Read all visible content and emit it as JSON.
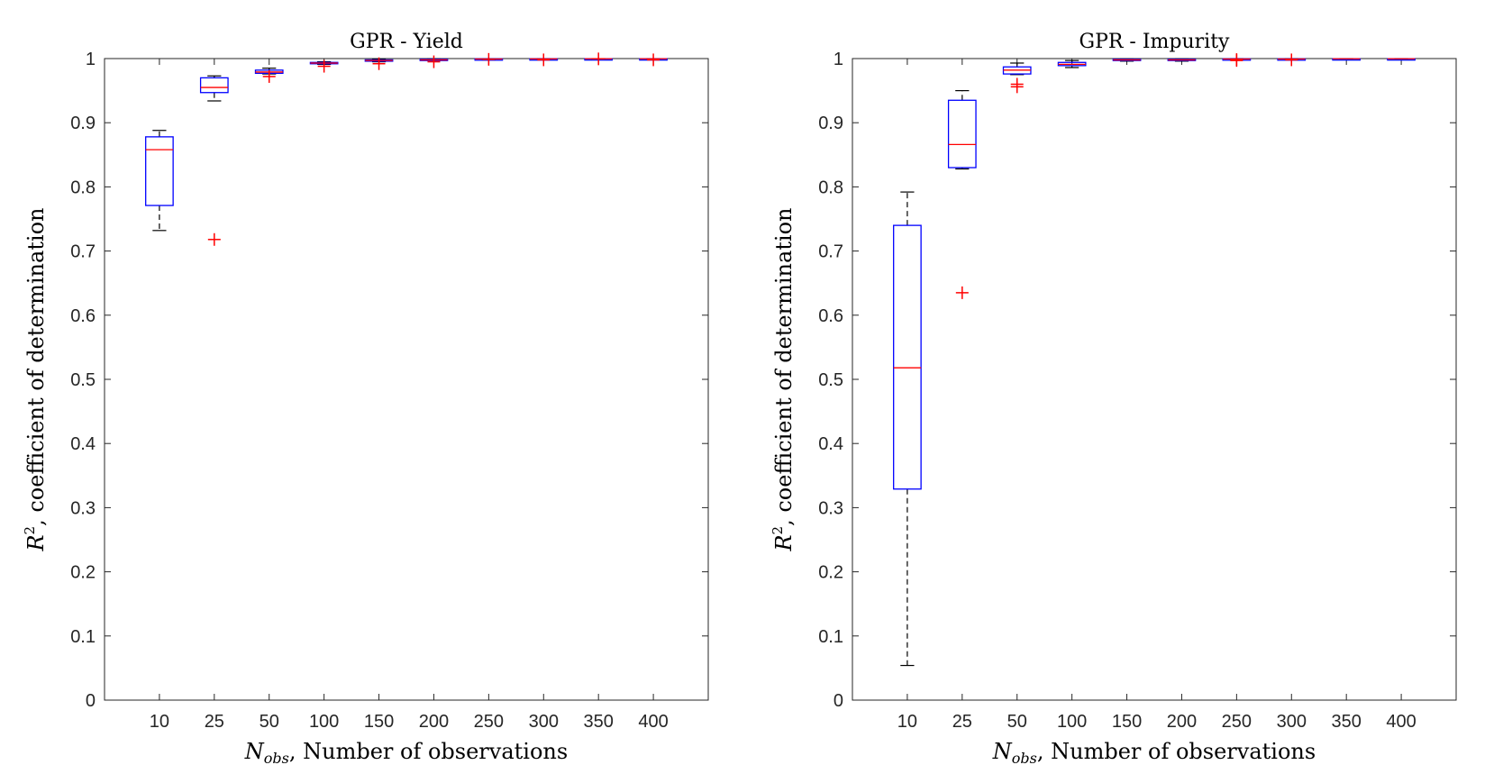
{
  "chart_data": [
    {
      "type": "box",
      "title": "GPR - Yield",
      "xlabel_symbol": "N",
      "xlabel_sub": "obs",
      "xlabel_text": ", Number of observations",
      "ylabel_symbol": "R",
      "ylabel_sup": "2",
      "ylabel_text": ", coefficient of determination",
      "categories": [
        "10",
        "25",
        "50",
        "100",
        "150",
        "200",
        "250",
        "300",
        "350",
        "400"
      ],
      "ylim": [
        0,
        1
      ],
      "yticks": [
        "0",
        "0.1",
        "0.2",
        "0.3",
        "0.4",
        "0.5",
        "0.6",
        "0.7",
        "0.8",
        "0.9",
        "1"
      ],
      "colors": {
        "box": "#0000ff",
        "median": "#ff0000",
        "whisker": "#000000",
        "outlier": "#ff0000"
      },
      "boxes": [
        {
          "wlo": 0.732,
          "q1": 0.771,
          "median": 0.858,
          "q3": 0.878,
          "whi": 0.888,
          "outliers": []
        },
        {
          "wlo": 0.934,
          "q1": 0.947,
          "median": 0.955,
          "q3": 0.97,
          "whi": 0.973,
          "outliers": [
            0.718
          ]
        },
        {
          "wlo": 0.976,
          "q1": 0.977,
          "median": 0.979,
          "q3": 0.982,
          "whi": 0.985,
          "outliers": [
            0.972
          ]
        },
        {
          "wlo": 0.991,
          "q1": 0.992,
          "median": 0.993,
          "q3": 0.994,
          "whi": 0.995,
          "outliers": [
            0.988
          ]
        },
        {
          "wlo": 0.995,
          "q1": 0.996,
          "median": 0.997,
          "q3": 0.998,
          "whi": 0.999,
          "outliers": [
            0.992
          ]
        },
        {
          "wlo": 0.997,
          "q1": 0.998,
          "median": 0.998,
          "q3": 0.999,
          "whi": 0.9995,
          "outliers": [
            0.995
          ]
        },
        {
          "wlo": 0.9985,
          "q1": 0.999,
          "median": 0.9993,
          "q3": 0.9996,
          "whi": 0.9998,
          "outliers": [
            0.9988
          ]
        },
        {
          "wlo": 0.9988,
          "q1": 0.9992,
          "median": 0.9995,
          "q3": 0.9997,
          "whi": 0.9999,
          "outliers": [
            0.998
          ]
        },
        {
          "wlo": 0.9992,
          "q1": 0.9994,
          "median": 0.9996,
          "q3": 0.9998,
          "whi": 0.9999,
          "outliers": [
            0.9995
          ]
        },
        {
          "wlo": 0.9992,
          "q1": 0.9995,
          "median": 0.9997,
          "q3": 0.9998,
          "whi": 0.9999,
          "outliers": [
            0.998
          ]
        }
      ]
    },
    {
      "type": "box",
      "title": "GPR - Impurity",
      "xlabel_symbol": "N",
      "xlabel_sub": "obs",
      "xlabel_text": ", Number of observations",
      "ylabel_symbol": "R",
      "ylabel_sup": "2",
      "ylabel_text": ", coefficient of determination",
      "categories": [
        "10",
        "25",
        "50",
        "100",
        "150",
        "200",
        "250",
        "300",
        "350",
        "400"
      ],
      "ylim": [
        0,
        1
      ],
      "yticks": [
        "0",
        "0.1",
        "0.2",
        "0.3",
        "0.4",
        "0.5",
        "0.6",
        "0.7",
        "0.8",
        "0.9",
        "1"
      ],
      "colors": {
        "box": "#0000ff",
        "median": "#ff0000",
        "whisker": "#000000",
        "outlier": "#ff0000"
      },
      "boxes": [
        {
          "wlo": 0.054,
          "q1": 0.329,
          "median": 0.518,
          "q3": 0.74,
          "whi": 0.792,
          "outliers": []
        },
        {
          "wlo": 0.828,
          "q1": 0.83,
          "median": 0.866,
          "q3": 0.935,
          "whi": 0.95,
          "outliers": [
            0.635
          ]
        },
        {
          "wlo": 0.975,
          "q1": 0.976,
          "median": 0.982,
          "q3": 0.987,
          "whi": 0.993,
          "outliers": [
            0.96,
            0.956
          ]
        },
        {
          "wlo": 0.986,
          "q1": 0.989,
          "median": 0.991,
          "q3": 0.994,
          "whi": 0.997,
          "outliers": []
        },
        {
          "wlo": 0.996,
          "q1": 0.997,
          "median": 0.998,
          "q3": 0.999,
          "whi": 0.9995,
          "outliers": []
        },
        {
          "wlo": 0.996,
          "q1": 0.997,
          "median": 0.998,
          "q3": 0.999,
          "whi": 0.9995,
          "outliers": []
        },
        {
          "wlo": 0.998,
          "q1": 0.999,
          "median": 0.9993,
          "q3": 0.9996,
          "whi": 0.9999,
          "outliers": [
            0.9985,
            0.997
          ]
        },
        {
          "wlo": 0.998,
          "q1": 0.999,
          "median": 0.9993,
          "q3": 0.9996,
          "whi": 0.9999,
          "outliers": [
            0.998
          ]
        },
        {
          "wlo": 0.9992,
          "q1": 0.9994,
          "median": 0.9996,
          "q3": 0.9998,
          "whi": 0.9999,
          "outliers": []
        },
        {
          "wlo": 0.9993,
          "q1": 0.9995,
          "median": 0.9997,
          "q3": 0.9998,
          "whi": 0.9999,
          "outliers": []
        }
      ]
    }
  ]
}
